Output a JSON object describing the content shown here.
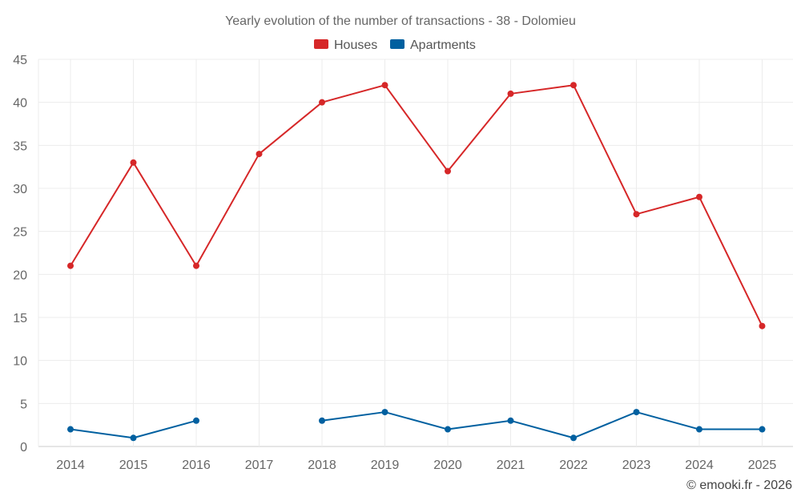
{
  "chart_data": {
    "type": "line",
    "title": "Yearly evolution of the number of transactions - 38 - Dolomieu",
    "categories": [
      "2014",
      "2015",
      "2016",
      "2017",
      "2018",
      "2019",
      "2020",
      "2021",
      "2022",
      "2023",
      "2024",
      "2025"
    ],
    "ylim": [
      0,
      45
    ],
    "yticks": [
      0,
      5,
      10,
      15,
      20,
      25,
      30,
      35,
      40,
      45
    ],
    "grid": true,
    "legend_position": "top-center",
    "series": [
      {
        "name": "Houses",
        "color": "#d62728",
        "values": [
          21,
          33,
          21,
          34,
          40,
          42,
          32,
          41,
          42,
          27,
          29,
          14
        ]
      },
      {
        "name": "Apartments",
        "color": "#0060a0",
        "values": [
          2,
          1,
          3,
          null,
          3,
          4,
          2,
          3,
          1,
          4,
          2,
          2
        ]
      }
    ],
    "credit": "© emooki.fr - 2026"
  }
}
